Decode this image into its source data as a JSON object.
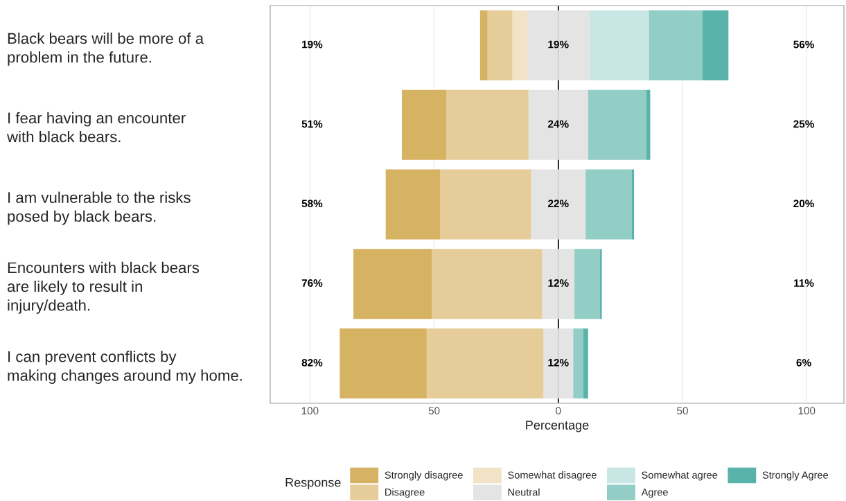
{
  "chart_data": {
    "type": "bar",
    "orientation": "horizontal",
    "stacked": true,
    "xlabel": "Percentage",
    "legend_title": "Response",
    "legend": "bottom",
    "grid": "x",
    "categories": [
      "Black bears will be more of a problem in the future.",
      "I fear having an encounter with black bears.",
      "I am vulnerable to the risks posed by black bears.",
      "Encounters with black bears are likely to result in injury/death.",
      "I can prevent conflicts by making changes around my home."
    ],
    "series": [
      {
        "color": "#e4e4e4",
        "values": [
          -12.5,
          -12,
          -11,
          -6.5,
          -6
        ]
      },
      {
        "name": "Somewhat disagree",
        "color": "#f2e3c6",
        "values": [
          -6,
          0,
          0,
          0,
          0
        ]
      },
      {
        "name": "Disagree",
        "color": "#e5cc98",
        "values": [
          -10,
          -33,
          -36.5,
          -44.5,
          -47
        ]
      },
      {
        "name": "Strongly disagree",
        "color": "#d6b263",
        "values": [
          -3,
          -18,
          -22,
          -31.5,
          -35
        ]
      },
      {
        "name": "Neutral",
        "color": "#e4e4e4",
        "values": [
          12.5,
          12,
          11,
          6.5,
          6
        ]
      },
      {
        "name": "Somewhat agree",
        "color": "#c8e6e4",
        "values": [
          24,
          0,
          0,
          0,
          0
        ]
      },
      {
        "name": "Agree",
        "color": "#92cdc6",
        "values": [
          21.5,
          23.5,
          18.5,
          10.3,
          4
        ]
      },
      {
        "name": "Strongly Agree",
        "color": "#5ab3aa",
        "values": [
          10.5,
          1.5,
          1,
          0.7,
          2
        ]
      }
    ],
    "xlim": [
      -116,
      115
    ],
    "xticks": [
      {
        "value": -100,
        "label": "100"
      },
      {
        "value": -50,
        "label": "50"
      },
      0,
      50,
      100
    ],
    "ref_lines": [
      {
        "axis": "x",
        "value": 0,
        "color": "#000000"
      }
    ],
    "annotations": [
      "19%",
      "19%",
      "56%",
      "51%",
      "24%",
      "25%",
      "58%",
      "22%",
      "20%",
      "76%",
      "12%",
      "11%",
      "82%",
      "12%",
      "6%"
    ]
  }
}
